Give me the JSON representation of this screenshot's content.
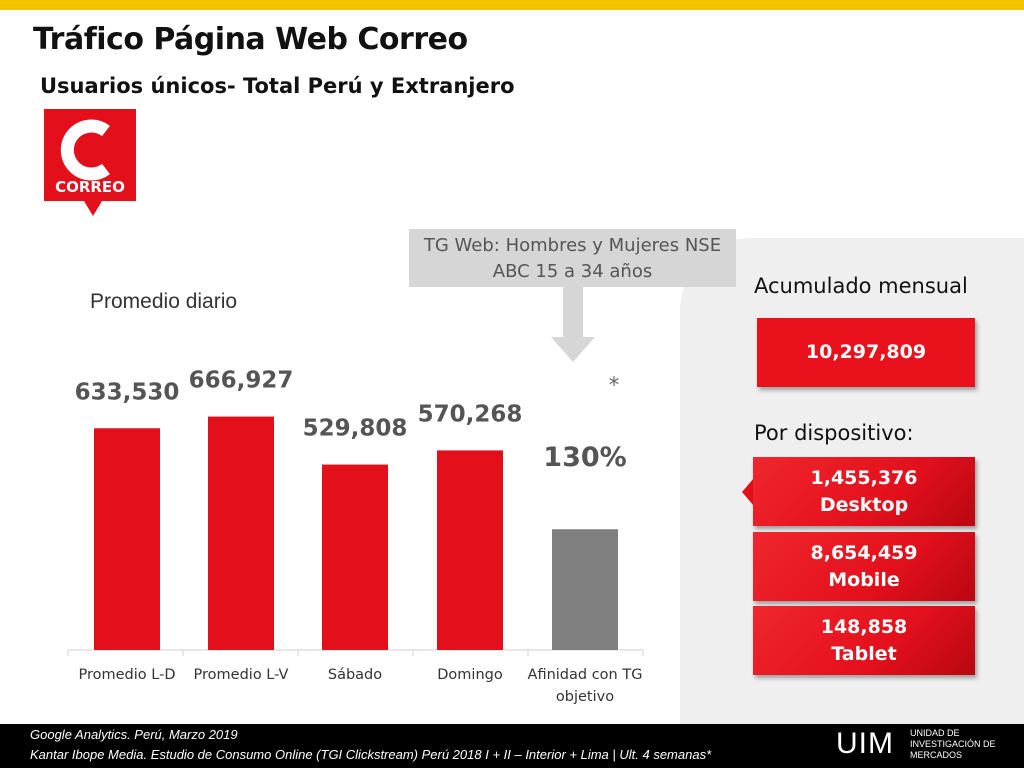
{
  "header": {
    "title": "Tráfico Página Web Correo",
    "subtitle": "Usuarios únicos- Total Perú y Extranjero"
  },
  "logo": {
    "text": "CORREO",
    "letter": "C",
    "color": "#e3101c"
  },
  "callout": {
    "line1": "TG Web: Hombres y Mujeres NSE",
    "line2": "ABC 15 a 34 años"
  },
  "chart_data": {
    "type": "bar",
    "title": "Promedio diario",
    "categories": [
      "Promedio L-D",
      "Promedio L-V",
      "Sábado",
      "Domingo",
      "Afinidad con TG objetivo"
    ],
    "values": [
      633530,
      666927,
      529808,
      570268,
      null
    ],
    "value_labels": [
      "633,530",
      "666,927",
      "529,808",
      "570,268",
      "130%"
    ],
    "affinity_value": 130,
    "affinity_unit": "%",
    "affinity_note": "*",
    "bar_colors": [
      "#e3101c",
      "#e3101c",
      "#e3101c",
      "#e3101c",
      "#808080"
    ],
    "ylim": [
      0,
      700000
    ],
    "grid": false,
    "legend": "none"
  },
  "summary": {
    "monthly_label": "Acumulado mensual",
    "monthly_value": "10,297,809",
    "device_label": "Por dispositivo:",
    "devices": [
      {
        "value": "1,455,376",
        "name": "Desktop"
      },
      {
        "value": "8,654,459",
        "name": "Mobile"
      },
      {
        "value": "148,858",
        "name": "Tablet"
      }
    ]
  },
  "footer": {
    "line1": "Google Analytics. Perú,  Marzo 2019",
    "line2": "Kantar Ibope Media. Estudio de Consumo Online (TGI Clickstream) Perú 2018 I + II – Interior + Lima | Ult. 4 semanas*",
    "brand": "UIM",
    "brand_lines": [
      "UNIDAD DE",
      "INVESTIGACIÓN DE",
      "MERCADOS"
    ]
  },
  "colors": {
    "accent": "#e3101c",
    "top_bar": "#f5c400",
    "affinity_bar": "#808080",
    "panel": "#efefef"
  }
}
